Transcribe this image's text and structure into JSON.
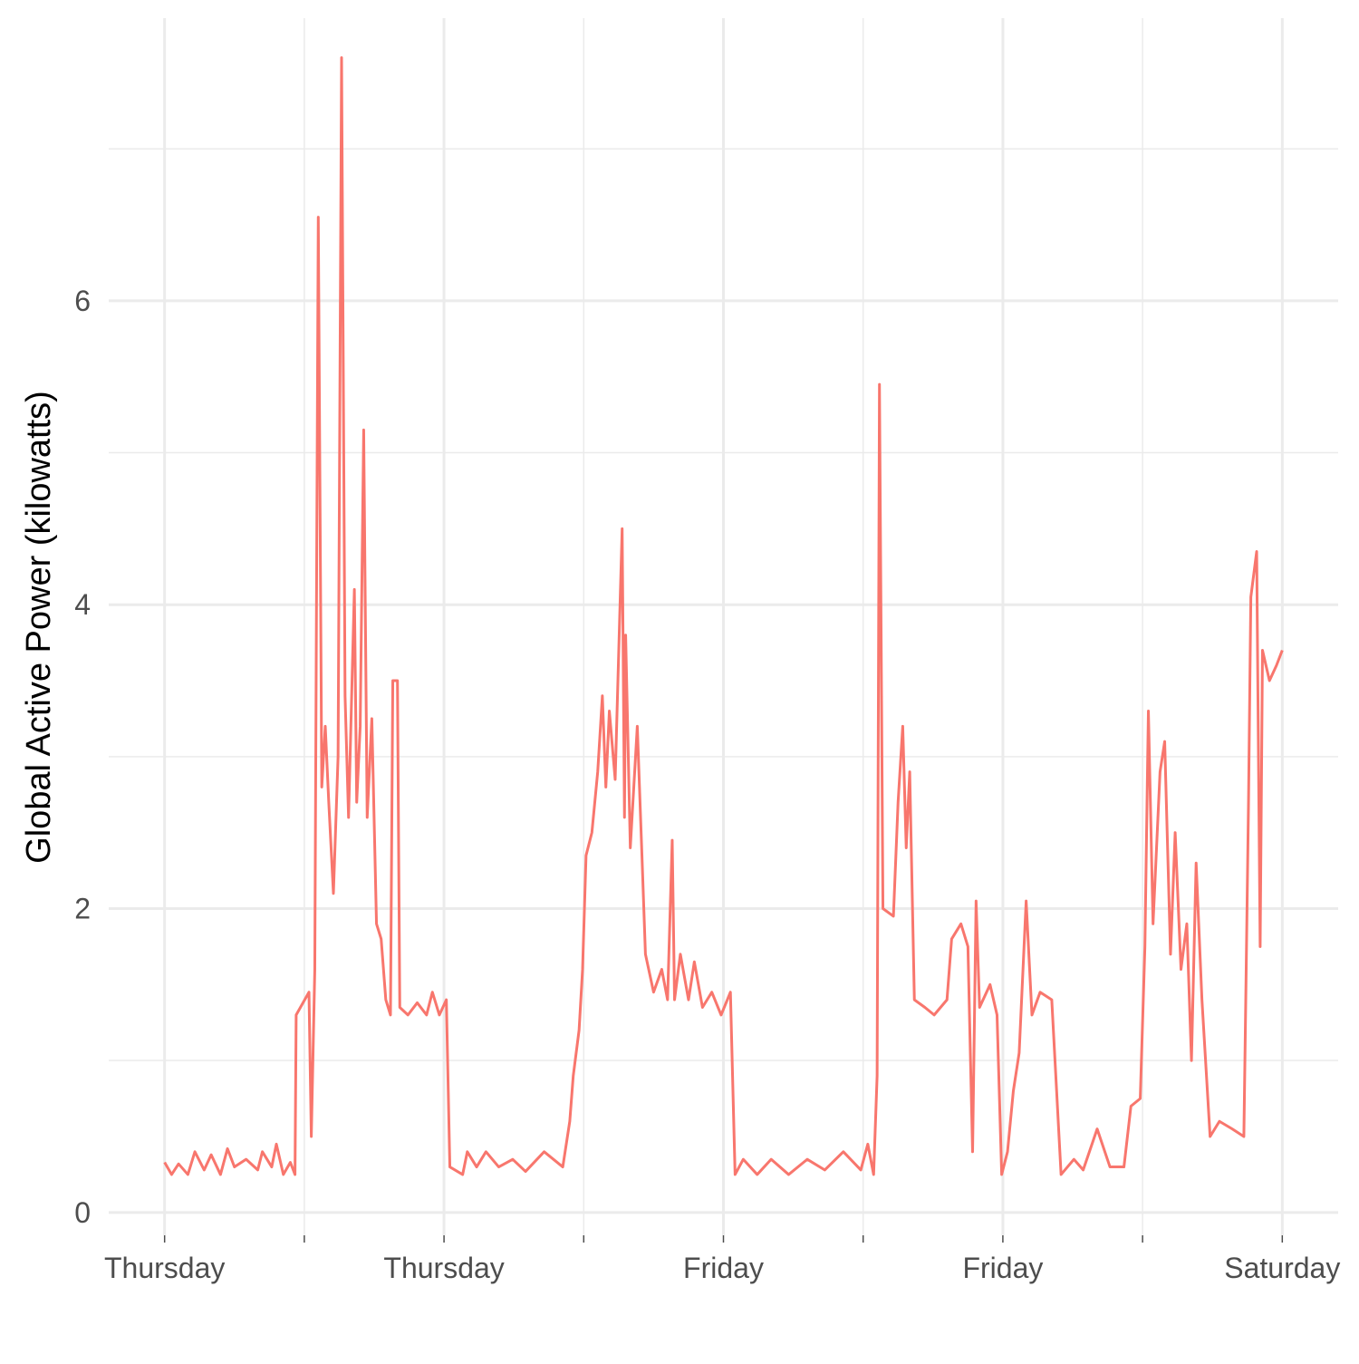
{
  "chart_data": {
    "type": "line",
    "y_label": "Global Active Power (kilowatts)",
    "x": [
      0,
      0.3,
      0.6,
      1,
      1.3,
      1.7,
      2,
      2.4,
      2.7,
      3,
      3.5,
      4,
      4.2,
      4.6,
      4.8,
      5.1,
      5.4,
      5.6,
      5.65,
      6.2,
      6.3,
      6.45,
      6.6,
      6.75,
      6.9,
      7.05,
      7.25,
      7.45,
      7.6,
      7.75,
      7.9,
      8.15,
      8.25,
      8.4,
      8.55,
      8.7,
      8.9,
      9.1,
      9.3,
      9.5,
      9.7,
      9.8,
      10,
      10.1,
      10.45,
      10.85,
      11.25,
      11.5,
      11.8,
      12.1,
      12.25,
      12.8,
      13,
      13.4,
      13.8,
      14.35,
      14.95,
      15.5,
      16.3,
      17.1,
      17.4,
      17.55,
      17.8,
      17.95,
      18.1,
      18.35,
      18.6,
      18.8,
      18.95,
      19.1,
      19.35,
      19.65,
      19.75,
      19.8,
      20,
      20.3,
      20.5,
      20.65,
      21,
      21.35,
      21.6,
      21.8,
      21.9,
      22.15,
      22.5,
      22.75,
      23.1,
      23.5,
      23.9,
      24.3,
      24.5,
      24.85,
      25.45,
      26.05,
      26.8,
      27.6,
      28.35,
      29.15,
      29.9,
      30.2,
      30.45,
      30.6,
      30.7,
      30.85,
      31.3,
      31.5,
      31.7,
      31.85,
      32,
      32.2,
      32.65,
      33.05,
      33.6,
      33.8,
      34.2,
      34.5,
      34.7,
      34.85,
      35,
      35.45,
      35.75,
      35.95,
      36.2,
      36.45,
      36.7,
      37,
      37.25,
      37.6,
      38.1,
      38.5,
      39.05,
      39.45,
      40.05,
      40.6,
      41.2,
      41.5,
      41.9,
      42.1,
      42.25,
      42.45,
      42.75,
      42.95,
      43.2,
      43.4,
      43.65,
      43.9,
      44.1,
      44.3,
      44.55,
      44.9,
      45.3,
      45.85,
      46.35,
      46.55,
      46.65,
      46.9,
      47.05,
      47.15,
      47.45,
      47.75,
      48
    ],
    "series": [
      {
        "color": "#F8766D",
        "values": [
          0.33,
          0.25,
          0.32,
          0.25,
          0.4,
          0.28,
          0.38,
          0.25,
          0.42,
          0.3,
          0.35,
          0.28,
          0.4,
          0.3,
          0.45,
          0.25,
          0.33,
          0.25,
          1.3,
          1.45,
          0.5,
          1.6,
          6.55,
          2.8,
          3.2,
          2.7,
          2.1,
          3.0,
          7.6,
          3.4,
          2.6,
          4.1,
          2.7,
          3.2,
          5.15,
          2.6,
          3.25,
          1.9,
          1.8,
          1.4,
          1.3,
          3.5,
          3.5,
          1.35,
          1.3,
          1.38,
          1.3,
          1.45,
          1.3,
          1.4,
          0.3,
          0.25,
          0.4,
          0.3,
          0.4,
          0.3,
          0.35,
          0.27,
          0.4,
          0.3,
          0.6,
          0.9,
          1.2,
          1.6,
          2.35,
          2.5,
          2.9,
          3.4,
          2.8,
          3.3,
          2.85,
          4.5,
          2.6,
          3.8,
          2.4,
          3.2,
          2.35,
          1.7,
          1.45,
          1.6,
          1.4,
          2.45,
          1.4,
          1.7,
          1.4,
          1.65,
          1.35,
          1.45,
          1.3,
          1.45,
          0.25,
          0.35,
          0.25,
          0.35,
          0.25,
          0.35,
          0.28,
          0.4,
          0.28,
          0.45,
          0.25,
          0.9,
          5.45,
          2.0,
          1.95,
          2.7,
          3.2,
          2.4,
          2.9,
          1.4,
          1.35,
          1.3,
          1.4,
          1.8,
          1.9,
          1.75,
          0.4,
          2.05,
          1.35,
          1.5,
          1.3,
          0.25,
          0.4,
          0.8,
          1.05,
          2.05,
          1.3,
          1.45,
          1.4,
          0.25,
          0.35,
          0.28,
          0.55,
          0.3,
          0.3,
          0.7,
          0.75,
          1.75,
          3.3,
          1.9,
          2.9,
          3.1,
          1.7,
          2.5,
          1.6,
          1.9,
          1.0,
          2.3,
          1.4,
          0.5,
          0.6,
          0.55,
          0.5,
          2.7,
          4.05,
          4.35,
          1.75,
          3.7,
          3.5,
          3.6,
          3.7
        ]
      }
    ],
    "xlim": [
      -2.4,
      50.4
    ],
    "xticks": [
      {
        "value": 0,
        "label": "Thursday"
      },
      {
        "value": 12,
        "label": "Thursday"
      },
      {
        "value": 24,
        "label": "Friday"
      },
      {
        "value": 36,
        "label": "Friday"
      },
      {
        "value": 48,
        "label": "Saturday"
      }
    ],
    "xminor": [
      6,
      18,
      30,
      42
    ],
    "ylim": [
      -0.15,
      7.86
    ],
    "yticks": [
      0,
      2,
      4,
      6
    ],
    "yminor": [
      1,
      3,
      5,
      7
    ],
    "grid": true
  }
}
